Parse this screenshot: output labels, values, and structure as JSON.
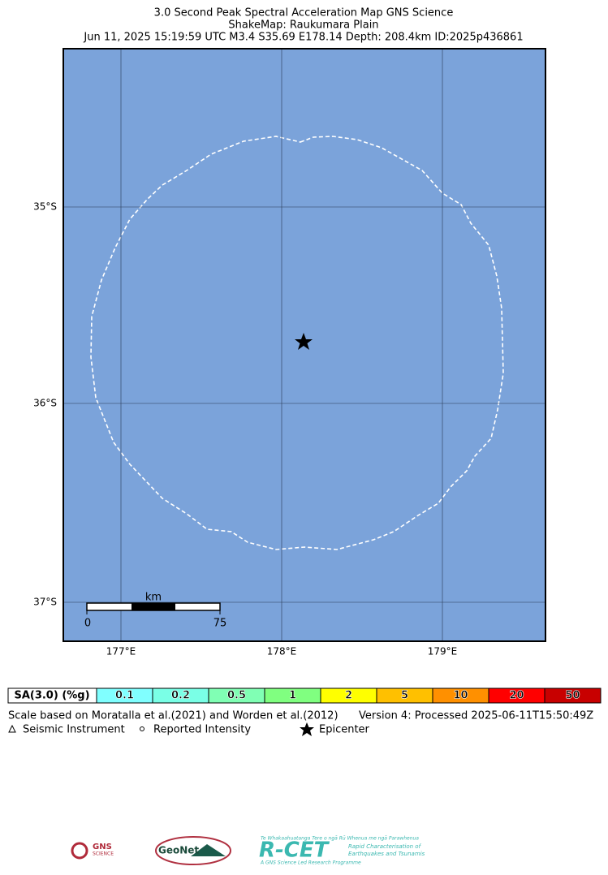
{
  "header": {
    "title": "3.0 Second Peak Spectral Acceleration Map GNS Science",
    "subtitle": "ShakeMap: Raukumara Plain",
    "event": "Jun 11, 2025 15:19:59 UTC M3.4 S35.69 E178.14 Depth: 208.4km ID:2025p436861"
  },
  "map": {
    "lat_labels": [
      "35°S",
      "36°S",
      "37°S"
    ],
    "lon_labels": [
      "177°E",
      "178°E",
      "179°E"
    ],
    "scale_bar": {
      "unit": "km",
      "start": "0",
      "end": "75"
    }
  },
  "legend": {
    "label": "SA(3.0) (%g)",
    "bins": [
      {
        "label": "0.1",
        "color": "#80ffff"
      },
      {
        "label": "0.2",
        "color": "#7affe6"
      },
      {
        "label": "0.5",
        "color": "#80ffb4"
      },
      {
        "label": "1",
        "color": "#80ff80"
      },
      {
        "label": "2",
        "color": "#ffff00"
      },
      {
        "label": "5",
        "color": "#ffc000"
      },
      {
        "label": "10",
        "color": "#ff9000"
      },
      {
        "label": "20",
        "color": "#ff0000"
      },
      {
        "label": "50",
        "color": "#c80000"
      }
    ]
  },
  "notes": {
    "reference": "Scale based on Moratalla et al.(2021) and Worden et al.(2012)",
    "version": "Version 4: Processed 2025-06-11T15:50:49Z"
  },
  "symbols": [
    "Seismic Instrument",
    "Reported Intensity",
    "Epicenter"
  ],
  "logos": {
    "gns": "GNS",
    "gns_sub": "SCIENCE",
    "geonet": "GeoNet",
    "rcet": "R-CET",
    "rcet_top": "Te Whakaahuatanga Tere o ngā Rū Whenua me ngā Parawhenua",
    "rcet_desc1": "Rapid Characterisation of",
    "rcet_desc2": "Earthquakes and Tsunamis",
    "rcet_bottom": "A GNS Science Led Research Programme"
  }
}
